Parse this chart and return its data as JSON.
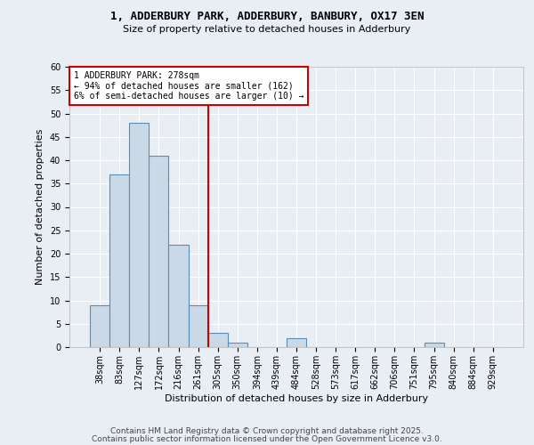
{
  "title1": "1, ADDERBURY PARK, ADDERBURY, BANBURY, OX17 3EN",
  "title2": "Size of property relative to detached houses in Adderbury",
  "xlabel": "Distribution of detached houses by size in Adderbury",
  "ylabel": "Number of detached properties",
  "bar_labels": [
    "38sqm",
    "83sqm",
    "127sqm",
    "172sqm",
    "216sqm",
    "261sqm",
    "305sqm",
    "350sqm",
    "394sqm",
    "439sqm",
    "484sqm",
    "528sqm",
    "573sqm",
    "617sqm",
    "662sqm",
    "706sqm",
    "751sqm",
    "795sqm",
    "840sqm",
    "884sqm",
    "929sqm"
  ],
  "bar_values": [
    9,
    37,
    48,
    41,
    22,
    9,
    3,
    1,
    0,
    0,
    2,
    0,
    0,
    0,
    0,
    0,
    0,
    1,
    0,
    0,
    0
  ],
  "bar_color": "#c9d9e8",
  "bar_edge_color": "#5a8db5",
  "vline_x": 5.5,
  "vline_color": "#cc0000",
  "ylim": [
    0,
    60
  ],
  "yticks": [
    0,
    5,
    10,
    15,
    20,
    25,
    30,
    35,
    40,
    45,
    50,
    55,
    60
  ],
  "annotation_text": "1 ADDERBURY PARK: 278sqm\n← 94% of detached houses are smaller (162)\n6% of semi-detached houses are larger (10) →",
  "annotation_box_color": "#ffffff",
  "annotation_box_edge_color": "#cc0000",
  "background_color": "#e8eef4",
  "footer_text1": "Contains HM Land Registry data © Crown copyright and database right 2025.",
  "footer_text2": "Contains public sector information licensed under the Open Government Licence v3.0.",
  "title1_fontsize": 9,
  "title2_fontsize": 8,
  "xlabel_fontsize": 8,
  "ylabel_fontsize": 8,
  "tick_fontsize": 7,
  "annotation_fontsize": 7,
  "footer_fontsize": 6.5
}
